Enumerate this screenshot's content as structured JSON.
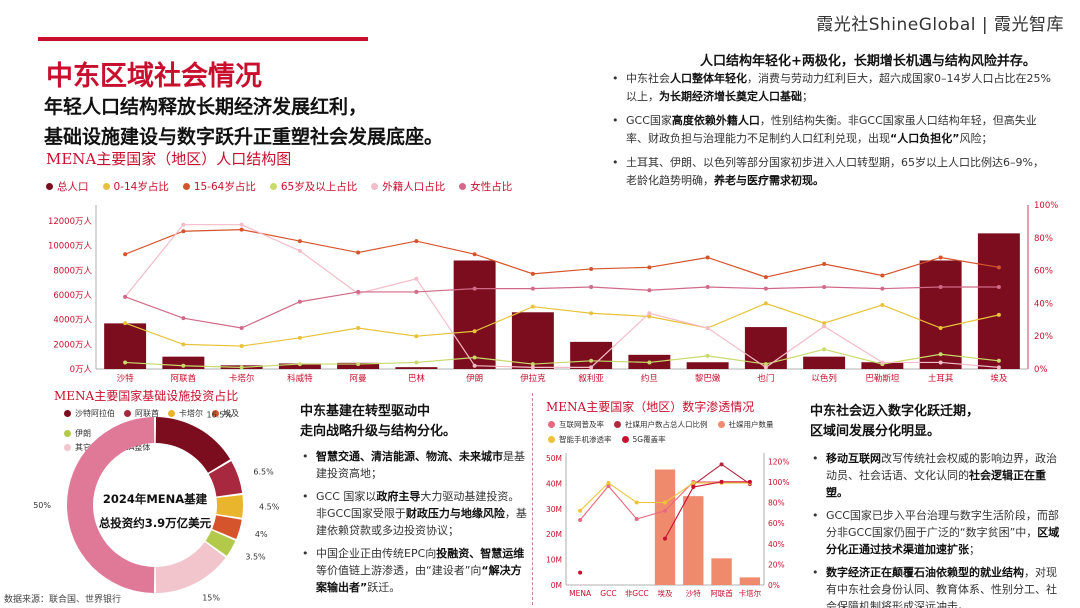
{
  "brand": "霞光社ShineGlobal | 霞光智库",
  "title": "中东区域社会情况",
  "subtitle_lines": [
    "年轻人口结构释放长期经济发展红利，",
    "基础设施建设与数字跃升正重塑社会发展底座。"
  ],
  "right_panel": {
    "heading": "人口结构年轻化+两极化，长期增长机遇与结构风险并存。",
    "bullets": [
      [
        {
          "t": "中东社会"
        },
        {
          "t": "人口整体年轻化",
          "b": true
        },
        {
          "t": "，消费与劳动力红利巨大，超六成国家0–14岁人口占比在25%以上，"
        },
        {
          "t": "为长期经济增长奠定人口基础",
          "b": true
        },
        {
          "t": "；"
        }
      ],
      [
        {
          "t": "GCC国家"
        },
        {
          "t": "高度依赖外籍人口",
          "b": true
        },
        {
          "t": "，性别结构失衡。非GCC国家虽人口结构年轻，但高失业率、财政负担与治理能力不足制约人口红利兑现，出现"
        },
        {
          "t": "“人口负担化”",
          "b": true
        },
        {
          "t": "风险；"
        }
      ],
      [
        {
          "t": "土耳其、伊朗、以色列等部分国家初步进入人口转型期，65岁以上人口比例达6–9%，老龄化趋势明确，"
        },
        {
          "t": "养老与医疗需求初现。",
          "b": true
        }
      ]
    ]
  },
  "pop_section_title": "MENA主要国家（地区）人口结构图",
  "infra_section_title": "MENA主要国家基础设施投资占比",
  "digital_section_title": "MENA主要国家（地区）数字渗透情况",
  "mid_panel": {
    "heading_lines": [
      "中东基建在转型驱动中",
      "走向战略升级与结构分化。"
    ],
    "bullets": [
      [
        {
          "t": "智慧交通、清洁能源、物流、未来城市",
          "b": true
        },
        {
          "t": "是基建投资高地；"
        }
      ],
      [
        {
          "t": "GCC 国家以"
        },
        {
          "t": "政府主导",
          "b": true
        },
        {
          "t": "大力驱动基建投资。非GCC国家受限于"
        },
        {
          "t": "财政压力与地缘风险",
          "b": true
        },
        {
          "t": "，基建依赖贷款或多边投资协议；"
        }
      ],
      [
        {
          "t": "中国企业正由传统EPC向"
        },
        {
          "t": "投融资、智慧运维",
          "b": true
        },
        {
          "t": "等价值链上游渗透，由“建设者”向"
        },
        {
          "t": "“解决方案输出者”",
          "b": true
        },
        {
          "t": "跃迁。"
        }
      ]
    ]
  },
  "right_bottom": {
    "heading_lines": [
      "中东社会迈入数字化跃迁期，",
      "区域间发展分化明显。"
    ],
    "bullets": [
      [
        {
          "t": "移动互联网",
          "b": true
        },
        {
          "t": "改写传统社会权威的影响边界，政治动员、社会话语、文化认同的"
        },
        {
          "t": "社会逻辑正在重塑。",
          "b": true
        }
      ],
      [
        {
          "t": "GCC国家已步入平台治理与数字生活阶段，而部分非GCC国家仍囿于广泛的“数字贫困”中，"
        },
        {
          "t": "区域分化正通过技术渠道加速扩张",
          "b": true
        },
        {
          "t": "；"
        }
      ],
      [
        {
          "t": "数字经济正在颠覆石油依赖型的就业结构",
          "b": true
        },
        {
          "t": "，对现有中东社会身份认同、教育体系、性别分工、社会保障机制将形成深远冲击。"
        }
      ]
    ]
  },
  "source": "数据来源：联合国、世界银行",
  "chart_data": [
    {
      "type": "bar",
      "title": "MENA主要国家（地区）人口结构图",
      "categories": [
        "沙特",
        "阿联酋",
        "卡塔尔",
        "科威特",
        "阿曼",
        "巴林",
        "伊朗",
        "伊拉克",
        "叙利亚",
        "约旦",
        "黎巴嫩",
        "也门",
        "以色列",
        "巴勒斯坦",
        "土耳其",
        "埃及"
      ],
      "bar_series": {
        "name": "总人口",
        "color": "#7b0d1e",
        "values": [
          3700,
          1000,
          300,
          450,
          500,
          150,
          8800,
          4600,
          2200,
          1150,
          550,
          3400,
          1000,
          550,
          8800,
          11000
        ]
      },
      "line_series": [
        {
          "name": "0-14岁占比",
          "color": "#e8c23a",
          "values": [
            28,
            15,
            14,
            19,
            25,
            20,
            23,
            38,
            34,
            32,
            25,
            40,
            28,
            39,
            25,
            33
          ]
        },
        {
          "name": "15-64岁占比",
          "color": "#d6542c",
          "values": [
            70,
            84,
            85,
            78,
            71,
            78,
            70,
            58,
            61,
            62,
            68,
            56,
            64,
            57,
            68,
            62
          ]
        },
        {
          "name": "65岁及以上占比",
          "color": "#c9d96b",
          "values": [
            4,
            2,
            1,
            3,
            3,
            4,
            7,
            3,
            5,
            4,
            8,
            3,
            12,
            3,
            9,
            5
          ]
        },
        {
          "name": "外籍人口占比",
          "color": "#f3bcc8",
          "values": [
            44,
            88,
            88,
            72,
            46,
            55,
            2,
            1,
            1,
            34,
            25,
            1,
            26,
            4,
            4,
            1
          ]
        },
        {
          "name": "女性占比",
          "color": "#d06a88",
          "values": [
            44,
            31,
            25,
            41,
            47,
            47,
            49,
            49,
            50,
            48,
            50,
            49,
            50,
            49,
            50,
            50
          ]
        }
      ],
      "y_left": {
        "ticks": [
          "0万人",
          "2000万人",
          "4000万人",
          "6000万人",
          "8000万人",
          "10000万人",
          "12000万人"
        ],
        "max": 13300
      },
      "y_right": {
        "ticks": [
          "0%",
          "20%",
          "40%",
          "60%",
          "80%",
          "100%"
        ],
        "max": 100
      },
      "legend": "top-left",
      "grid": false
    },
    {
      "type": "pie",
      "title": "MENA主要国家基础设施投资占比",
      "center_lines": [
        "2024年MENA基建",
        "总投资约3.9万亿美元"
      ],
      "slices": [
        {
          "name": "沙特阿拉伯",
          "value": 16.5,
          "label": "16.5%",
          "color": "#7b0d1e"
        },
        {
          "name": "阿联酋",
          "value": 6.5,
          "label": "6.5%",
          "color": "#a8283f"
        },
        {
          "name": "卡塔尔",
          "value": 4.5,
          "label": "4.5%",
          "color": "#e8b52c"
        },
        {
          "name": "埃及",
          "value": 4,
          "label": "4%",
          "color": "#d6542c"
        },
        {
          "name": "伊朗",
          "value": 3.5,
          "label": "3.5%",
          "color": "#b3c94a"
        },
        {
          "name": "其它",
          "value": 15,
          "label": "15%",
          "color": "#f2c4cc"
        },
        {
          "name": "MENA整体",
          "value": 50,
          "label": "50%",
          "color": "#e07898"
        }
      ],
      "legend": "top-left"
    },
    {
      "type": "bar",
      "title": "MENA主要国家（地区）数字渗透情况",
      "categories": [
        "MENA",
        "GCC",
        "非GCC",
        "埃及",
        "沙特",
        "阿联酋",
        "卡塔尔"
      ],
      "bar_series": {
        "name": "社媒用户数量",
        "color": "#f08a6c",
        "values": [
          null,
          null,
          null,
          45.5,
          35,
          10.5,
          3
        ]
      },
      "line_series": [
        {
          "name": "互联网普及率",
          "color": "#e86880",
          "values": [
            63,
            96,
            64,
            72,
            100,
            100,
            100
          ]
        },
        {
          "name": "社媒用户数占总人口比例",
          "color": "#b2283f",
          "values": [
            null,
            null,
            null,
            null,
            97,
            117,
            98
          ]
        },
        {
          "name": "智能手机渗透率",
          "color": "#f0c23a",
          "values": [
            72,
            99,
            80,
            80,
            99,
            99,
            99
          ]
        },
        {
          "name": "5G覆盖率",
          "color": "#c8102e",
          "values": [
            12,
            null,
            null,
            45,
            95,
            100,
            100
          ]
        }
      ],
      "y_left": {
        "ticks": [
          "0M",
          "10M",
          "20M",
          "30M",
          "40M",
          "50M"
        ],
        "max": 52
      },
      "y_right": {
        "ticks": [
          "0%",
          "20%",
          "40%",
          "60%",
          "80%",
          "100%",
          "120%"
        ],
        "max": 128
      },
      "legend": "top-left"
    }
  ]
}
